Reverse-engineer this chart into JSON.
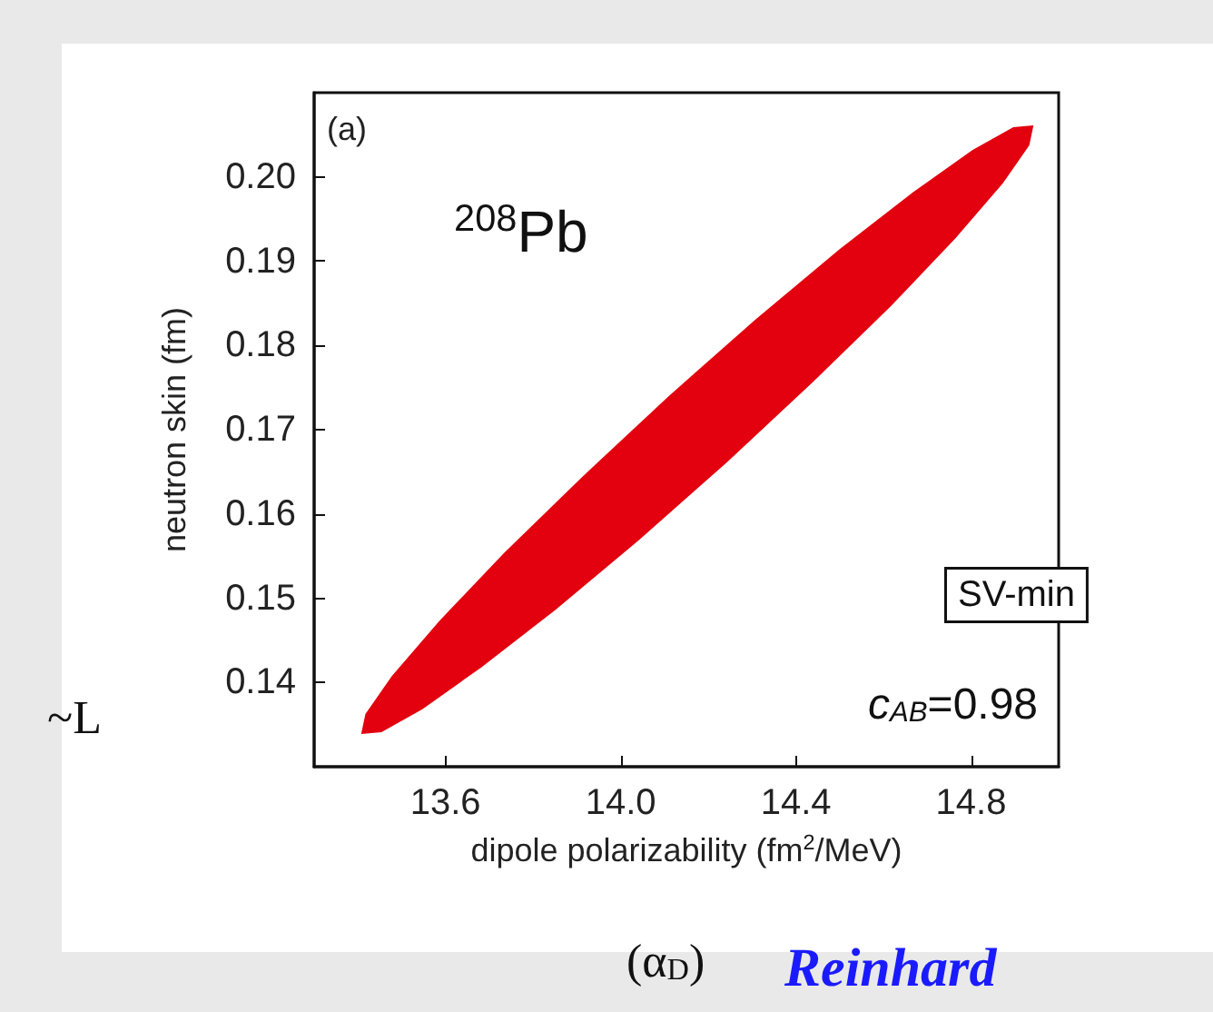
{
  "chart_data": {
    "type": "area",
    "xlabel": "dipole polarizability (fm$^{2}$/MeV)",
    "ylabel": "neutron skin (fm)",
    "annotations": [
      "(a)",
      "$^{208}$Pb",
      "SV-min",
      "c$_{AB}$=0.98",
      "~L",
      "(α$_{D}$)",
      "Reinhard"
    ],
    "xlim": [
      13.3,
      15.0
    ],
    "ylim": [
      0.13,
      0.21
    ],
    "xticks": [
      13.6,
      {
        "value": 14,
        "label": "14.0"
      },
      14.4,
      14.8
    ],
    "yticks": [
      0.14,
      0.15,
      0.16,
      0.17,
      0.18,
      0.19,
      {
        "value": 0.2,
        "label": "0.20"
      }
    ],
    "series": [
      {
        "color": "#e3000f",
        "x": [
          14.94,
          14.931,
          14.871,
          14.763,
          14.615,
          14.437,
          14.241,
          14.041,
          13.85,
          13.681,
          13.546,
          13.453,
          13.41,
          13.419,
          13.479,
          13.587,
          13.735,
          13.913,
          14.109,
          14.309,
          14.5,
          14.669,
          14.804,
          14.897
        ],
        "values": [
          0.206,
          0.2038,
          0.1993,
          0.1928,
          0.1847,
          0.1757,
          0.1662,
          0.157,
          0.1487,
          0.1419,
          0.1369,
          0.1342,
          0.134,
          0.1362,
          0.1407,
          0.1472,
          0.1553,
          0.1643,
          0.1738,
          0.183,
          0.1913,
          0.1981,
          0.2031,
          0.2058
        ]
      }
    ]
  }
}
